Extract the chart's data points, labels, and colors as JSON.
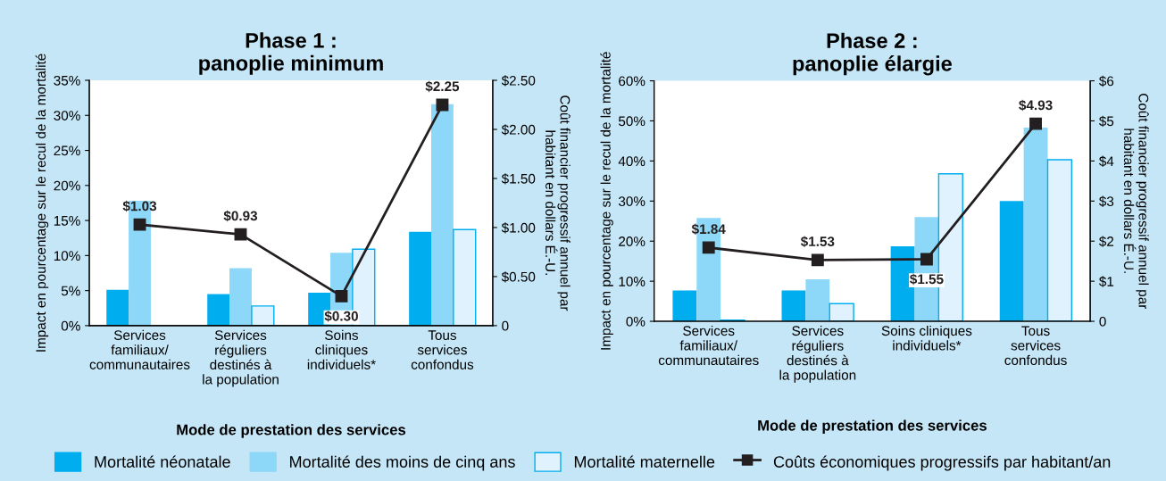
{
  "chart_data": [
    {
      "type": "bar",
      "title": "Phase 1 :\npanoplie minimum",
      "xlabel": "Mode de prestation des services",
      "ylabel": "Impact en pourcentage sur le recul de la mortalité",
      "y2label": "Coût financier progressif annuel par\nhabitant en dollars É.-U.",
      "categories": [
        "Services\nfamiliaux/\ncommunautaires",
        "Services\nréguliers\ndestinés à\nla population",
        "Soins\ncliniques\nindividuels*",
        "Tous\nservices\nconfondus"
      ],
      "series": [
        {
          "name": "Mortalité néonatale",
          "color": "#00aeef",
          "values": [
            5.1,
            4.5,
            4.7,
            13.4
          ]
        },
        {
          "name": "Mortalité des moins de cinq ans",
          "color": "#8dd8f8",
          "values": [
            17.8,
            8.2,
            10.4,
            31.6
          ]
        },
        {
          "name": "Mortalité maternelle",
          "color": "#dff2fd",
          "values": [
            null,
            2.8,
            10.9,
            13.7
          ]
        },
        {
          "name": "Coûts économiques progressifs par habitant/an",
          "type": "line",
          "axis": "y2",
          "color": "#231f20",
          "values": [
            1.03,
            0.93,
            0.3,
            2.25
          ],
          "value_labels": [
            "$1.03",
            "$0.93",
            "$0.30",
            "$2.25"
          ]
        }
      ],
      "ylim": [
        0,
        35
      ],
      "yticks": [
        {
          "value": 0,
          "label": "0%"
        },
        {
          "value": 5,
          "label": "5%"
        },
        {
          "value": 10,
          "label": "10%"
        },
        {
          "value": 15,
          "label": "15%"
        },
        {
          "value": 20,
          "label": "20%"
        },
        {
          "value": 25,
          "label": "25%"
        },
        {
          "value": 30,
          "label": "30%"
        },
        {
          "value": 35,
          "label": "35%"
        }
      ],
      "y2lim": [
        0,
        2.5
      ],
      "y2ticks": [
        0,
        {
          "value": 0.5,
          "label": "$0.50"
        },
        {
          "value": 1,
          "label": "$1.00"
        },
        {
          "value": 1.5,
          "label": "$1.50"
        },
        {
          "value": 2,
          "label": "$2.00"
        },
        {
          "value": 2.5,
          "label": "$2.50"
        }
      ],
      "marker": "square",
      "grid": false,
      "legend": "bottom"
    },
    {
      "type": "bar",
      "title": "Phase 2 :\npanoplie élargie",
      "xlabel": "Mode de prestation des services",
      "ylabel": "Impact en pourcentage sur le recul de la mortalité",
      "y2label": "Coût financier progressif annuel par\nhabitant en dollars É.-U.",
      "categories": [
        "Services\nfamiliaux/\ncommunautaires",
        "Services\nréguliers\ndestinés à\nla population",
        "Soins cliniques\nindividuels*",
        "Tous\nservices\nconfondus"
      ],
      "series": [
        {
          "name": "Mortalité néonatale",
          "color": "#00aeef",
          "values": [
            7.7,
            7.7,
            18.7,
            30
          ]
        },
        {
          "name": "Mortalité des moins de cinq ans",
          "color": "#8dd8f8",
          "values": [
            25.8,
            10.5,
            26,
            48.3
          ]
        },
        {
          "name": "Mortalité maternelle",
          "color": "#dff2fd",
          "values": [
            0.3,
            4.4,
            36.8,
            40.3
          ]
        },
        {
          "name": "Coûts économiques progressifs par habitant/an",
          "type": "line",
          "axis": "y2",
          "color": "#231f20",
          "values": [
            1.84,
            1.53,
            1.55,
            4.93
          ],
          "value_labels": [
            "$1.84",
            "$1.53",
            "$1.55",
            "$4.93"
          ]
        }
      ],
      "ylim": [
        0,
        60
      ],
      "yticks": [
        {
          "value": 0,
          "label": "0%"
        },
        {
          "value": 10,
          "label": "10%"
        },
        {
          "value": 20,
          "label": "20%"
        },
        {
          "value": 30,
          "label": "30%"
        },
        {
          "value": 40,
          "label": "40%"
        },
        {
          "value": 50,
          "label": "50%"
        },
        {
          "value": 60,
          "label": "60%"
        }
      ],
      "y2lim": [
        0,
        6
      ],
      "y2ticks": [
        0,
        {
          "value": 1,
          "label": "$1"
        },
        {
          "value": 2,
          "label": "$2"
        },
        {
          "value": 3,
          "label": "$3"
        },
        {
          "value": 4,
          "label": "$4"
        },
        {
          "value": 5,
          "label": "$5"
        },
        {
          "value": 6,
          "label": "$6"
        }
      ],
      "marker": "square",
      "grid": false,
      "legend": "bottom"
    }
  ]
}
